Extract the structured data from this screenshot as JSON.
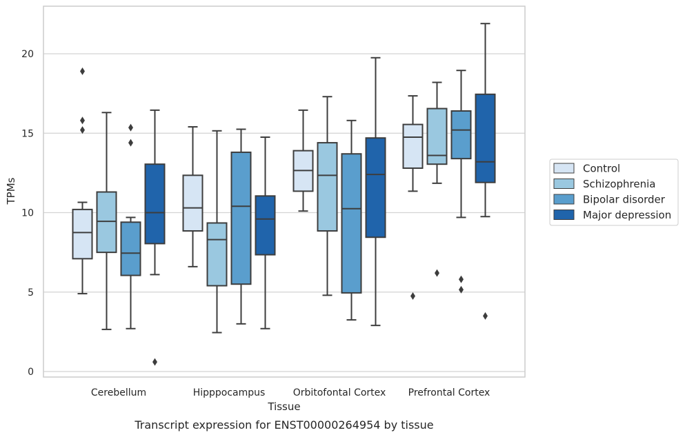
{
  "chart_data": {
    "type": "box",
    "title": "",
    "caption": "Transcript expression for ENST00000264954 by tissue",
    "xlabel": "Tissue",
    "ylabel": "TPMs",
    "ylim": [
      -0.4,
      23
    ],
    "yticks": [
      0,
      5,
      10,
      15,
      20
    ],
    "grid": "horizontal",
    "legend_position": "right",
    "categories": [
      "Cerebellum",
      "Hipppocampus",
      "Orbitofontal Cortex",
      "Prefrontal Cortex"
    ],
    "series": [
      {
        "name": "Control",
        "color": "#d6e5f4",
        "boxes": [
          {
            "whisker_low": 4.9,
            "q1": 7.1,
            "median": 8.75,
            "q3": 10.2,
            "whisker_high": 10.65,
            "outliers": [
              18.9,
              15.8,
              15.2
            ]
          },
          {
            "whisker_low": 6.6,
            "q1": 8.85,
            "median": 10.3,
            "q3": 12.35,
            "whisker_high": 15.4,
            "outliers": []
          },
          {
            "whisker_low": 10.1,
            "q1": 11.35,
            "median": 12.65,
            "q3": 13.9,
            "whisker_high": 16.45,
            "outliers": []
          },
          {
            "whisker_low": 11.35,
            "q1": 12.8,
            "median": 14.75,
            "q3": 15.55,
            "whisker_high": 17.35,
            "outliers": [
              4.75
            ]
          }
        ]
      },
      {
        "name": "Schizophrenia",
        "color": "#9ac8e0",
        "boxes": [
          {
            "whisker_low": 2.65,
            "q1": 7.5,
            "median": 9.45,
            "q3": 11.3,
            "whisker_high": 16.3,
            "outliers": []
          },
          {
            "whisker_low": 2.45,
            "q1": 5.4,
            "median": 8.3,
            "q3": 9.35,
            "whisker_high": 15.15,
            "outliers": []
          },
          {
            "whisker_low": 4.8,
            "q1": 8.85,
            "median": 12.35,
            "q3": 14.4,
            "whisker_high": 17.3,
            "outliers": []
          },
          {
            "whisker_low": 11.85,
            "q1": 13.05,
            "median": 13.6,
            "q3": 16.55,
            "whisker_high": 18.2,
            "outliers": [
              6.2
            ]
          }
        ]
      },
      {
        "name": "Bipolar disorder",
        "color": "#5a9ecd",
        "boxes": [
          {
            "whisker_low": 2.7,
            "q1": 6.05,
            "median": 7.45,
            "q3": 9.4,
            "whisker_high": 9.7,
            "outliers": [
              15.35,
              14.4
            ]
          },
          {
            "whisker_low": 3.0,
            "q1": 5.5,
            "median": 10.4,
            "q3": 13.8,
            "whisker_high": 15.25,
            "outliers": []
          },
          {
            "whisker_low": 3.25,
            "q1": 4.95,
            "median": 10.25,
            "q3": 13.7,
            "whisker_high": 15.8,
            "outliers": []
          },
          {
            "whisker_low": 9.7,
            "q1": 13.4,
            "median": 15.2,
            "q3": 16.4,
            "whisker_high": 18.95,
            "outliers": [
              5.8,
              5.15
            ]
          }
        ]
      },
      {
        "name": "Major depression",
        "color": "#2064ab",
        "boxes": [
          {
            "whisker_low": 6.1,
            "q1": 8.05,
            "median": 10.0,
            "q3": 13.05,
            "whisker_high": 16.45,
            "outliers": [
              0.6
            ]
          },
          {
            "whisker_low": 2.7,
            "q1": 7.35,
            "median": 9.6,
            "q3": 11.05,
            "whisker_high": 14.75,
            "outliers": []
          },
          {
            "whisker_low": 2.9,
            "q1": 8.45,
            "median": 12.4,
            "q3": 14.7,
            "whisker_high": 19.75,
            "outliers": []
          },
          {
            "whisker_low": 9.75,
            "q1": 11.9,
            "median": 13.2,
            "q3": 17.45,
            "whisker_high": 21.9,
            "outliers": [
              3.5
            ]
          }
        ]
      }
    ]
  }
}
